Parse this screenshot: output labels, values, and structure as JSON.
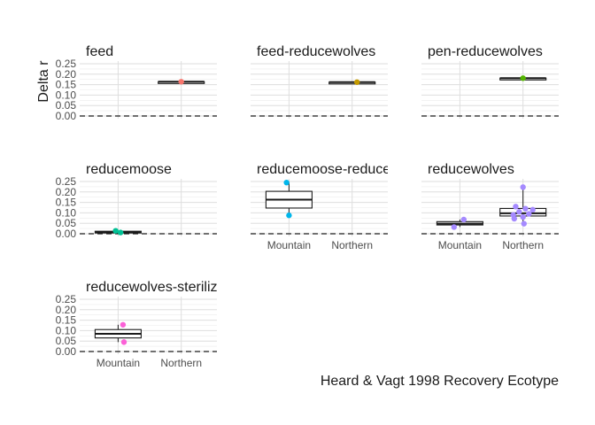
{
  "chart_data": {
    "type": "box",
    "ylabel": "Delta r",
    "xlabel": "Heard & Vagt 1998 Recovery Ecotype",
    "categories": [
      "Mountain",
      "Northern"
    ],
    "yticks": [
      "0.00",
      "0.05",
      "0.10",
      "0.15",
      "0.20",
      "0.25"
    ],
    "ylim": [
      0,
      0.25
    ],
    "grid": true,
    "panels": [
      {
        "title": "feed",
        "color": "#F8766D",
        "boxes": [
          {
            "category": "Northern",
            "q1": 0.164,
            "median": 0.164,
            "q3": 0.164,
            "min": 0.164,
            "max": 0.164
          }
        ],
        "points": [
          {
            "category": "Northern",
            "y": 0.164,
            "jitter": 0.0
          }
        ]
      },
      {
        "title": "feed-reducewolves",
        "color": "#C49A00",
        "boxes": [
          {
            "category": "Northern",
            "q1": 0.162,
            "median": 0.162,
            "q3": 0.162,
            "min": 0.162,
            "max": 0.162
          }
        ],
        "points": [
          {
            "category": "Northern",
            "y": 0.162,
            "jitter": 0.1
          }
        ]
      },
      {
        "title": "pen-reducewolves",
        "color": "#53B400",
        "boxes": [
          {
            "category": "Northern",
            "q1": 0.181,
            "median": 0.181,
            "q3": 0.181,
            "min": 0.181,
            "max": 0.181
          }
        ],
        "points": [
          {
            "category": "Northern",
            "y": 0.181,
            "jitter": 0.0
          }
        ]
      },
      {
        "title": "reducemoose",
        "color": "#00C094",
        "boxes": [
          {
            "category": "Mountain",
            "q1": 0.005,
            "median": 0.008,
            "q3": 0.012,
            "min": 0.004,
            "max": 0.014
          }
        ],
        "points": [
          {
            "category": "Mountain",
            "y": 0.014,
            "jitter": -0.05
          },
          {
            "category": "Mountain",
            "y": 0.006,
            "jitter": 0.05
          }
        ]
      },
      {
        "title": "reducemoose-reducewolves",
        "color": "#00B6EB",
        "boxes": [
          {
            "category": "Mountain",
            "q1": 0.123,
            "median": 0.163,
            "q3": 0.203,
            "min": 0.088,
            "max": 0.245
          }
        ],
        "points": [
          {
            "category": "Mountain",
            "y": 0.245,
            "jitter": -0.05
          },
          {
            "category": "Mountain",
            "y": 0.088,
            "jitter": 0.0
          }
        ]
      },
      {
        "title": "reducewolves",
        "color": "#A58AFF",
        "boxes": [
          {
            "category": "Mountain",
            "q1": 0.042,
            "median": 0.048,
            "q3": 0.058,
            "min": 0.032,
            "max": 0.068
          },
          {
            "category": "Northern",
            "q1": 0.085,
            "median": 0.098,
            "q3": 0.121,
            "min": 0.048,
            "max": 0.223
          }
        ],
        "points": [
          {
            "category": "Mountain",
            "y": 0.068,
            "jitter": 0.08
          },
          {
            "category": "Mountain",
            "y": 0.032,
            "jitter": -0.12
          },
          {
            "category": "Northern",
            "y": 0.223,
            "jitter": 0.0
          },
          {
            "category": "Northern",
            "y": 0.13,
            "jitter": -0.15
          },
          {
            "category": "Northern",
            "y": 0.12,
            "jitter": 0.05
          },
          {
            "category": "Northern",
            "y": 0.115,
            "jitter": 0.2
          },
          {
            "category": "Northern",
            "y": 0.105,
            "jitter": -0.08
          },
          {
            "category": "Northern",
            "y": 0.095,
            "jitter": 0.12
          },
          {
            "category": "Northern",
            "y": 0.09,
            "jitter": -0.2
          },
          {
            "category": "Northern",
            "y": 0.08,
            "jitter": 0.0
          },
          {
            "category": "Northern",
            "y": 0.072,
            "jitter": -0.18
          },
          {
            "category": "Northern",
            "y": 0.048,
            "jitter": 0.02
          }
        ]
      },
      {
        "title": "reducewolves-sterilize",
        "color": "#FB61D7",
        "boxes": [
          {
            "category": "Mountain",
            "q1": 0.065,
            "median": 0.085,
            "q3": 0.105,
            "min": 0.045,
            "max": 0.128
          }
        ],
        "points": [
          {
            "category": "Mountain",
            "y": 0.128,
            "jitter": 0.1
          },
          {
            "category": "Mountain",
            "y": 0.045,
            "jitter": 0.12
          }
        ]
      }
    ]
  }
}
